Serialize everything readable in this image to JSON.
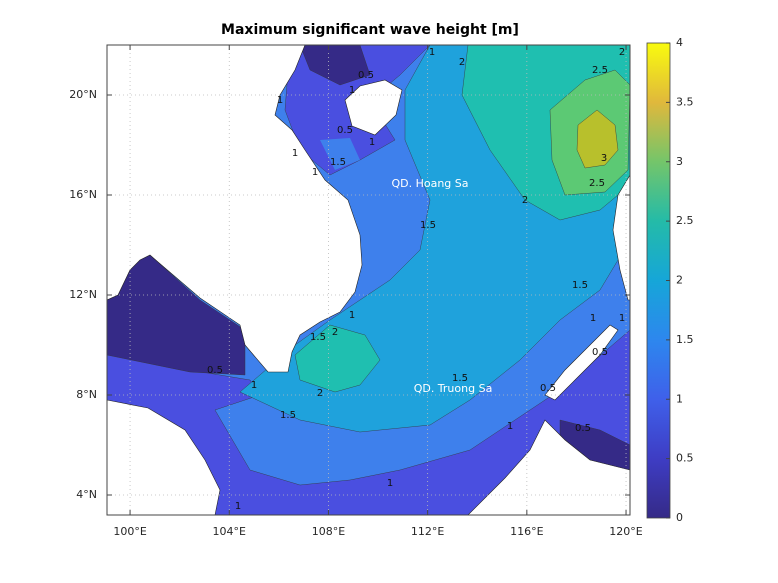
{
  "chart_data": {
    "type": "contour-map",
    "title": "Maximum significant wave height [m]",
    "xlim": [
      99.07,
      120.16
    ],
    "xticks": [
      {
        "value": 100,
        "label": "100°E"
      },
      {
        "value": 104,
        "label": "104°E"
      },
      {
        "value": 108,
        "label": "108°E"
      },
      {
        "value": 112,
        "label": "112°E"
      },
      {
        "value": 116,
        "label": "116°E"
      },
      {
        "value": 120,
        "label": "120°E"
      }
    ],
    "ylim": [
      3.2,
      22
    ],
    "yticks": [
      {
        "value": 4,
        "label": "4°N"
      },
      {
        "value": 8,
        "label": "8°N"
      },
      {
        "value": 12,
        "label": "12°N"
      },
      {
        "value": 16,
        "label": "16°N"
      },
      {
        "value": 20,
        "label": "20°N"
      }
    ],
    "grid": true,
    "colorbar": {
      "lim": [
        0,
        4
      ],
      "ticks": [
        0,
        0.5,
        1,
        1.5,
        2,
        2.5,
        3,
        3.5,
        4
      ]
    },
    "contour_labels": [
      0.5,
      1,
      1,
      2,
      2.5,
      2,
      1,
      0.5,
      1,
      1,
      1.5,
      1,
      1.5,
      2,
      2.5,
      3,
      1.5,
      1,
      1,
      0.5,
      1.5,
      2,
      1,
      0.5,
      1,
      2,
      1.5,
      1.5,
      0.5,
      1,
      0.5,
      1,
      1
    ],
    "annotations": [
      "QD. Hoang Sa",
      "QD. Truong Sa"
    ]
  }
}
